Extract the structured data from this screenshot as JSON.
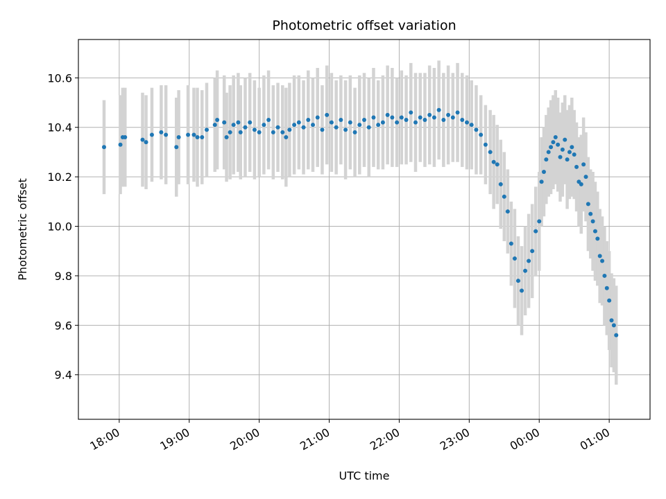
{
  "chart_data": {
    "type": "scatter",
    "title": "Photometric offset variation",
    "xlabel": "UTC time",
    "ylabel": "Photometric offset",
    "x_ticks": [
      "18:00",
      "19:00",
      "20:00",
      "21:00",
      "22:00",
      "23:00",
      "00:00",
      "01:00"
    ],
    "x_tick_minutes": [
      0,
      60,
      120,
      180,
      240,
      300,
      360,
      420
    ],
    "xlim_minutes": [
      -35,
      455
    ],
    "ylim": [
      9.22,
      10.755
    ],
    "y_ticks": [
      9.4,
      9.6,
      9.8,
      10.0,
      10.2,
      10.4,
      10.6
    ],
    "grid": true,
    "marker_color": "#1f77b4",
    "errorbar_color": "#d3d3d3",
    "series": [
      {
        "x_minutes": [
          -13,
          1,
          3,
          5,
          20,
          23,
          28,
          36,
          40,
          49,
          51,
          59,
          64,
          67,
          71,
          75,
          82,
          84,
          90,
          92,
          95,
          98,
          102,
          104,
          108,
          112,
          116,
          120,
          124,
          128,
          132,
          136,
          140,
          143,
          146,
          150,
          154,
          158,
          162,
          166,
          170,
          174,
          178,
          182,
          186,
          190,
          194,
          198,
          202,
          206,
          210,
          214,
          218,
          222,
          226,
          230,
          234,
          238,
          242,
          246,
          250,
          254,
          258,
          262,
          266,
          270,
          274,
          278,
          282,
          286,
          290,
          294,
          298,
          302,
          306,
          310,
          314,
          318,
          321,
          324,
          327,
          330,
          333,
          336,
          339,
          342,
          345,
          348,
          351,
          354,
          357,
          360,
          362,
          364,
          366,
          368,
          370,
          372,
          374,
          376,
          378,
          380,
          382,
          384,
          386,
          388,
          390,
          392,
          394,
          396,
          398,
          400,
          402,
          404,
          406,
          408,
          410,
          412,
          414,
          416,
          418,
          420,
          422,
          424,
          426
        ],
        "y": [
          10.32,
          10.33,
          10.36,
          10.36,
          10.35,
          10.34,
          10.37,
          10.38,
          10.37,
          10.32,
          10.36,
          10.37,
          10.37,
          10.36,
          10.36,
          10.39,
          10.41,
          10.43,
          10.42,
          10.36,
          10.38,
          10.41,
          10.42,
          10.38,
          10.4,
          10.42,
          10.39,
          10.38,
          10.41,
          10.43,
          10.38,
          10.4,
          10.38,
          10.36,
          10.39,
          10.41,
          10.42,
          10.4,
          10.43,
          10.41,
          10.44,
          10.39,
          10.45,
          10.42,
          10.4,
          10.43,
          10.39,
          10.42,
          10.38,
          10.41,
          10.43,
          10.4,
          10.44,
          10.41,
          10.42,
          10.45,
          10.44,
          10.42,
          10.44,
          10.43,
          10.46,
          10.42,
          10.44,
          10.43,
          10.45,
          10.44,
          10.47,
          10.43,
          10.45,
          10.44,
          10.46,
          10.43,
          10.42,
          10.41,
          10.39,
          10.37,
          10.33,
          10.3,
          10.26,
          10.25,
          10.17,
          10.12,
          10.06,
          9.93,
          9.87,
          9.78,
          9.74,
          9.82,
          9.86,
          9.9,
          9.98,
          10.02,
          10.18,
          10.22,
          10.27,
          10.3,
          10.32,
          10.34,
          10.36,
          10.33,
          10.28,
          10.31,
          10.35,
          10.27,
          10.3,
          10.32,
          10.29,
          10.24,
          10.18,
          10.17,
          10.25,
          10.2,
          10.09,
          10.05,
          10.02,
          9.98,
          9.95,
          9.88,
          9.86,
          9.8,
          9.75,
          9.7,
          9.62,
          9.6,
          9.56
        ],
        "yerr": [
          0.19,
          0.2,
          0.2,
          0.2,
          0.19,
          0.19,
          0.19,
          0.19,
          0.2,
          0.2,
          0.19,
          0.2,
          0.19,
          0.2,
          0.19,
          0.19,
          0.19,
          0.2,
          0.19,
          0.18,
          0.19,
          0.2,
          0.2,
          0.19,
          0.2,
          0.2,
          0.2,
          0.18,
          0.2,
          0.2,
          0.19,
          0.18,
          0.19,
          0.2,
          0.19,
          0.2,
          0.19,
          0.19,
          0.2,
          0.19,
          0.2,
          0.18,
          0.2,
          0.2,
          0.19,
          0.18,
          0.2,
          0.19,
          0.18,
          0.2,
          0.19,
          0.2,
          0.2,
          0.18,
          0.19,
          0.2,
          0.2,
          0.18,
          0.19,
          0.18,
          0.2,
          0.2,
          0.18,
          0.19,
          0.2,
          0.2,
          0.2,
          0.19,
          0.2,
          0.18,
          0.2,
          0.19,
          0.19,
          0.18,
          0.18,
          0.16,
          0.16,
          0.17,
          0.19,
          0.16,
          0.18,
          0.18,
          0.17,
          0.17,
          0.2,
          0.18,
          0.18,
          0.18,
          0.19,
          0.19,
          0.18,
          0.2,
          0.18,
          0.18,
          0.18,
          0.18,
          0.19,
          0.19,
          0.19,
          0.19,
          0.18,
          0.19,
          0.18,
          0.2,
          0.19,
          0.2,
          0.18,
          0.18,
          0.18,
          0.2,
          0.19,
          0.18,
          0.19,
          0.18,
          0.2,
          0.2,
          0.19,
          0.19,
          0.18,
          0.2,
          0.19,
          0.2,
          0.19,
          0.19,
          0.2
        ]
      }
    ]
  }
}
